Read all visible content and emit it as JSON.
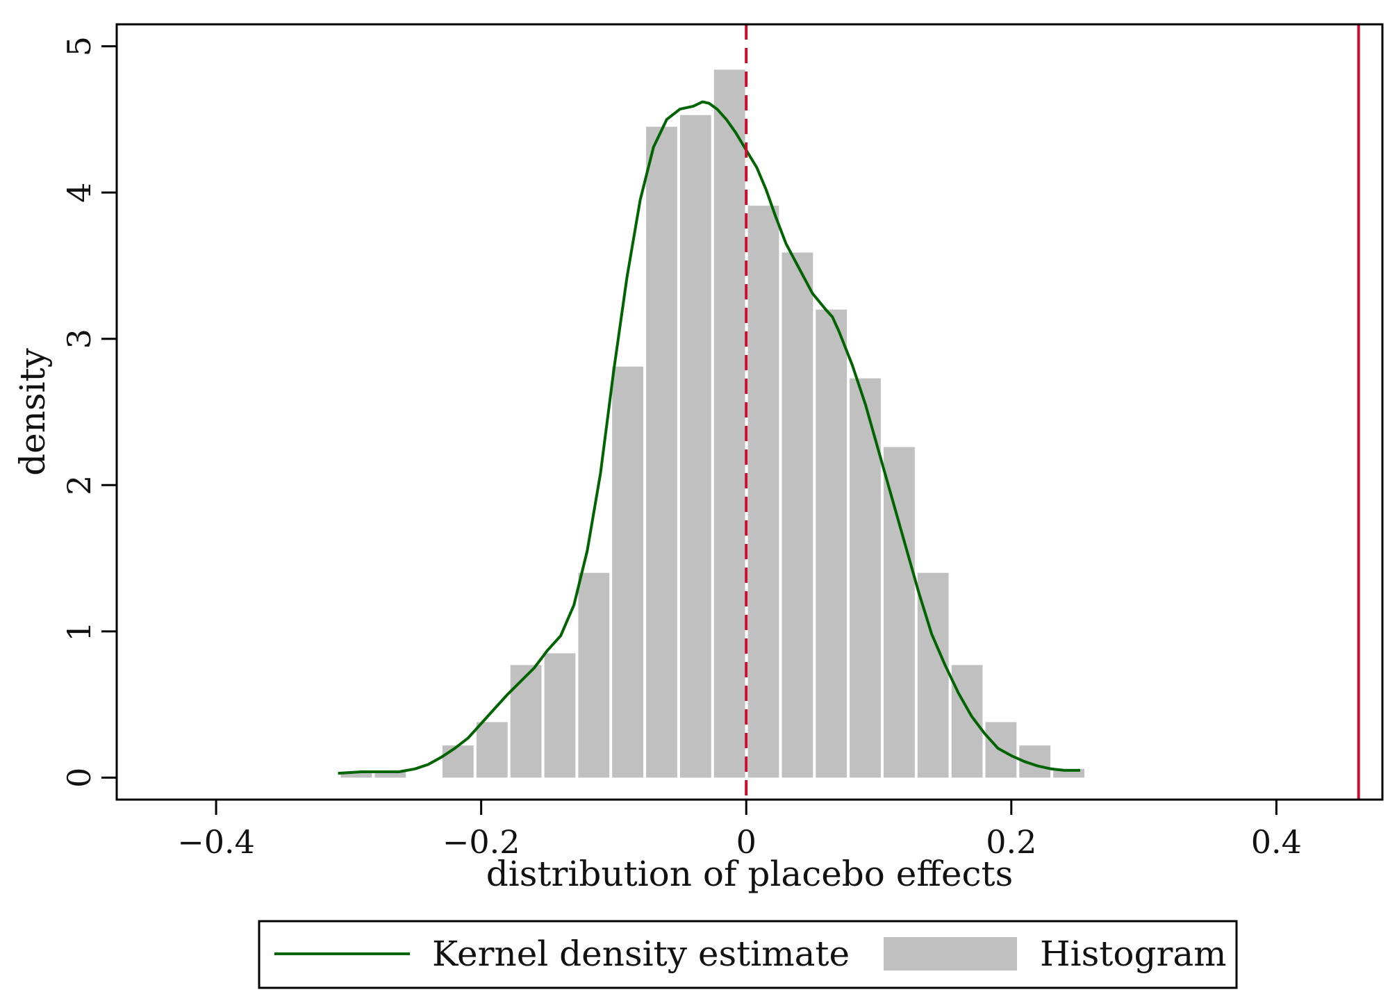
{
  "chart_data": {
    "type": "bar",
    "title": "",
    "xlabel": "distribution of placebo effects",
    "ylabel": "density",
    "xlim": [
      -0.475,
      0.48
    ],
    "ylim": [
      -0.15,
      5.15
    ],
    "xticks": [
      -0.4,
      -0.2,
      0,
      0.2,
      0.4
    ],
    "xtick_labels": [
      "−0.4",
      "−0.2",
      "0",
      "0.2",
      "0.4"
    ],
    "yticks": [
      0,
      1,
      2,
      3,
      4,
      5
    ],
    "ytick_labels": [
      "0",
      "1",
      "2",
      "3",
      "4",
      "5"
    ],
    "grid": false,
    "legend_position": "bottom",
    "histogram": {
      "name": "Histogram",
      "color": "#c0c0c0",
      "bin_width": 0.0256,
      "bin_starts": [
        -0.307,
        -0.2814,
        -0.2558,
        -0.2302,
        -0.2046,
        -0.179,
        -0.1534,
        -0.1278,
        -0.1022,
        -0.0766,
        -0.051,
        -0.0254,
        0.0002,
        0.0258,
        0.0514,
        0.077,
        0.1026,
        0.1282,
        0.1538,
        0.1794,
        0.205,
        0.2306
      ],
      "values": [
        0.04,
        0.04,
        0.0,
        0.22,
        0.38,
        0.77,
        0.85,
        1.4,
        2.81,
        4.45,
        4.53,
        4.84,
        3.91,
        3.59,
        3.2,
        2.73,
        2.26,
        1.4,
        0.77,
        0.38,
        0.22,
        0.06
      ]
    },
    "kde": {
      "name": "Kernel density estimate",
      "color": "#006400",
      "x": [
        -0.308,
        -0.29,
        -0.275,
        -0.262,
        -0.25,
        -0.24,
        -0.23,
        -0.22,
        -0.21,
        -0.2,
        -0.19,
        -0.18,
        -0.17,
        -0.16,
        -0.15,
        -0.14,
        -0.13,
        -0.12,
        -0.11,
        -0.1,
        -0.09,
        -0.08,
        -0.07,
        -0.06,
        -0.05,
        -0.04,
        -0.033,
        -0.028,
        -0.022,
        -0.015,
        -0.008,
        0.0,
        0.008,
        0.015,
        0.022,
        0.03,
        0.04,
        0.05,
        0.06,
        0.065,
        0.07,
        0.08,
        0.09,
        0.1,
        0.11,
        0.12,
        0.13,
        0.14,
        0.15,
        0.16,
        0.17,
        0.18,
        0.19,
        0.2,
        0.21,
        0.22,
        0.23,
        0.24,
        0.252
      ],
      "y": [
        0.03,
        0.04,
        0.04,
        0.04,
        0.06,
        0.09,
        0.14,
        0.2,
        0.27,
        0.37,
        0.47,
        0.57,
        0.66,
        0.75,
        0.87,
        0.97,
        1.18,
        1.55,
        2.08,
        2.78,
        3.42,
        3.95,
        4.31,
        4.5,
        4.57,
        4.59,
        4.62,
        4.61,
        4.57,
        4.5,
        4.41,
        4.29,
        4.17,
        4.02,
        3.84,
        3.65,
        3.48,
        3.31,
        3.2,
        3.15,
        3.05,
        2.82,
        2.55,
        2.23,
        1.91,
        1.59,
        1.27,
        0.98,
        0.77,
        0.58,
        0.42,
        0.3,
        0.2,
        0.15,
        0.11,
        0.08,
        0.06,
        0.05,
        0.05
      ]
    },
    "reference_lines": [
      {
        "name": "zero",
        "x": 0,
        "style": "dashed",
        "color": "#c8102e"
      },
      {
        "name": "actual-effect",
        "x": 0.462,
        "style": "solid",
        "color": "#c8102e"
      }
    ],
    "legend": [
      {
        "label": "Kernel density estimate",
        "kind": "line",
        "color": "#006400"
      },
      {
        "label": "Histogram",
        "kind": "box",
        "color": "#c0c0c0"
      }
    ]
  }
}
